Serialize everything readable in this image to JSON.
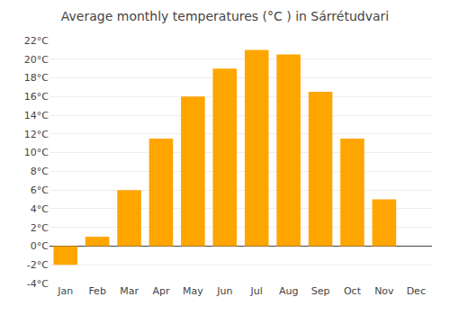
{
  "chart_data": {
    "type": "bar",
    "title": "Average monthly temperatures (°C ) in Sárrétudvari",
    "categories": [
      "Jan",
      "Feb",
      "Mar",
      "Apr",
      "May",
      "Jun",
      "Jul",
      "Aug",
      "Sep",
      "Oct",
      "Nov",
      "Dec"
    ],
    "values": [
      -2.0,
      1.0,
      6.0,
      11.5,
      16.0,
      19.0,
      21.0,
      20.5,
      16.5,
      11.5,
      5.0,
      0.0
    ],
    "color": "#FFA500",
    "ylim": [
      -4,
      22
    ],
    "yticks": [
      {
        "value": -4,
        "label": "-4°C"
      },
      {
        "value": -2,
        "label": "-2°C"
      },
      {
        "value": 0,
        "label": "0°C"
      },
      {
        "value": 2,
        "label": "2°C"
      },
      {
        "value": 4,
        "label": "4°C"
      },
      {
        "value": 6,
        "label": "6°C"
      },
      {
        "value": 8,
        "label": "8°C"
      },
      {
        "value": 10,
        "label": "10°C"
      },
      {
        "value": 12,
        "label": "12°C"
      },
      {
        "value": 14,
        "label": "14°C"
      },
      {
        "value": 16,
        "label": "16°C"
      },
      {
        "value": 18,
        "label": "18°C"
      },
      {
        "value": 20,
        "label": "20°C"
      },
      {
        "value": 22,
        "label": "22°C"
      }
    ],
    "grid": true
  }
}
